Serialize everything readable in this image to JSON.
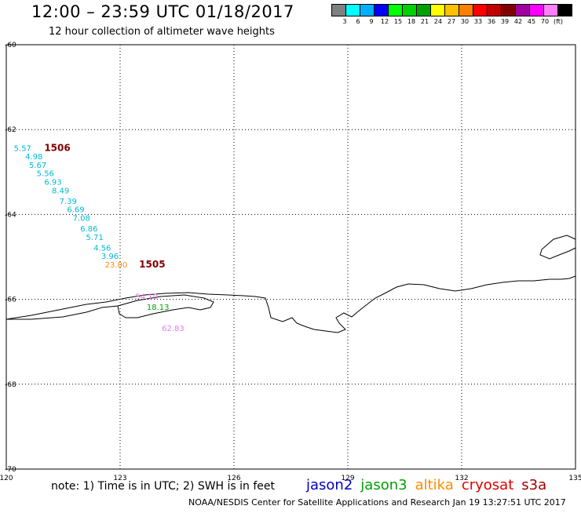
{
  "header": {
    "title": "12:00 – 23:59 UTC 01/18/2017",
    "subtitle": "12 hour collection of altimeter wave heights"
  },
  "colorbar": {
    "colors": [
      "#808080",
      "#00ffff",
      "#00b0ff",
      "#0000ff",
      "#00ff00",
      "#00d000",
      "#00a000",
      "#ffff00",
      "#ffc000",
      "#ff8000",
      "#ff0000",
      "#c00000",
      "#800000",
      "#a000a0",
      "#ff00ff",
      "#ff80ff",
      "#000000"
    ],
    "labels": [
      "3",
      "6",
      "9",
      "12",
      "15",
      "18",
      "21",
      "24",
      "27",
      "30",
      "33",
      "36",
      "39",
      "42",
      "45",
      "70",
      "(ft)"
    ]
  },
  "map": {
    "lon_range": [
      120,
      135
    ],
    "lat_range": [
      -60,
      -70
    ],
    "lon_ticks": [
      "120",
      "123",
      "126",
      "129",
      "132",
      "135"
    ],
    "lat_ticks": [
      "-60",
      "-62",
      "-64",
      "-66",
      "-68",
      "-70"
    ],
    "time_labels": [
      {
        "text": "1506",
        "lon": 121.0,
        "lat": -62.5,
        "color": "#800000"
      },
      {
        "text": "1505",
        "lon": 123.5,
        "lat": -65.25,
        "color": "#800000"
      }
    ],
    "wave_heights": [
      {
        "value": "5.57",
        "lon": 120.2,
        "lat": -62.5,
        "color": "#00b8d8"
      },
      {
        "value": "4.98",
        "lon": 120.5,
        "lat": -62.7,
        "color": "#00b8d8"
      },
      {
        "value": "5.67",
        "lon": 120.6,
        "lat": -62.9,
        "color": "#00b8d8"
      },
      {
        "value": "5.56",
        "lon": 120.8,
        "lat": -63.1,
        "color": "#00b8d8"
      },
      {
        "value": "6.93",
        "lon": 121.0,
        "lat": -63.3,
        "color": "#00b8d8"
      },
      {
        "value": "8.49",
        "lon": 121.2,
        "lat": -63.5,
        "color": "#00b8d8"
      },
      {
        "value": "7.39",
        "lon": 121.4,
        "lat": -63.75,
        "color": "#00b8d8"
      },
      {
        "value": "6.69",
        "lon": 121.6,
        "lat": -63.95,
        "color": "#00b8d8"
      },
      {
        "value": "7.08",
        "lon": 121.75,
        "lat": -64.15,
        "color": "#00b8d8"
      },
      {
        "value": "6.86",
        "lon": 121.95,
        "lat": -64.4,
        "color": "#00b8d8"
      },
      {
        "value": "5.71",
        "lon": 122.1,
        "lat": -64.6,
        "color": "#00b8d8"
      },
      {
        "value": "4.56",
        "lon": 122.3,
        "lat": -64.85,
        "color": "#00b8d8"
      },
      {
        "value": "3.96",
        "lon": 122.5,
        "lat": -65.05,
        "color": "#00b8d8"
      },
      {
        "value": "23.00",
        "lon": 122.6,
        "lat": -65.25,
        "color": "#ff8c00"
      },
      {
        "value": "54.10",
        "lon": 123.4,
        "lat": -66.0,
        "color": "#e080e0"
      },
      {
        "value": "18.13",
        "lon": 123.7,
        "lat": -66.25,
        "color": "#00a000"
      },
      {
        "value": "62.83",
        "lon": 124.1,
        "lat": -66.75,
        "color": "#e080e0"
      }
    ]
  },
  "footer": {
    "note": "note: 1) Time is in UTC; 2) SWH is in feet",
    "satellites": [
      {
        "name": "jason2",
        "color": "#0000c0"
      },
      {
        "name": "jason3",
        "color": "#00a000"
      },
      {
        "name": "altika",
        "color": "#ff8c00"
      },
      {
        "name": "cryosat",
        "color": "#e00000"
      },
      {
        "name": "s3a",
        "color": "#a00000"
      }
    ],
    "credit": "NOAA/NESDIS Center for Satellite Applications and Research   Jan 19 13:27:51 UTC 2017"
  }
}
